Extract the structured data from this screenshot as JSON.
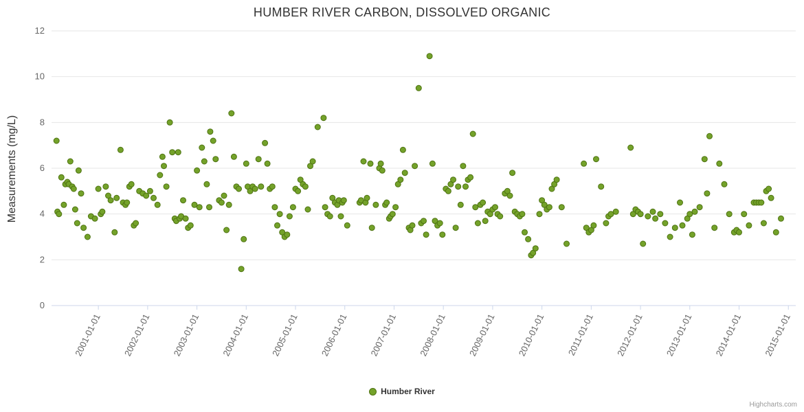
{
  "chart": {
    "title": "HUMBER RIVER CARBON, DISSOLVED ORGANIC",
    "ylabel": "Measurements (mg/L)",
    "legend": "Humber River",
    "credit": "Highcharts.com"
  },
  "colors": {
    "point_fill": "#74a22a",
    "point_stroke": "#4e7312",
    "grid": "#e6e6e6",
    "axis": "#ccd6eb",
    "tick_text": "#666666",
    "title_text": "#333333"
  },
  "chart_data": {
    "type": "scatter",
    "title": "HUMBER RIVER CARBON, DISSOLVED ORGANIC",
    "xlabel": "",
    "ylabel": "Measurements (mg/L)",
    "ylim": [
      0,
      12
    ],
    "yticks": [
      0,
      2,
      4,
      6,
      8,
      10,
      12
    ],
    "xlim": [
      2000.05,
      2015.15
    ],
    "xtick_values": [
      2001,
      2002,
      2003,
      2004,
      2005,
      2006,
      2007,
      2008,
      2009,
      2010,
      2011,
      2012,
      2013,
      2014,
      2015
    ],
    "xtick_labels": [
      "2001-01-01",
      "2002-01-01",
      "2003-01-01",
      "2004-01-01",
      "2005-01-01",
      "2006-01-01",
      "2007-01-01",
      "2008-01-01",
      "2009-01-01",
      "2010-01-01",
      "2011-01-01",
      "2012-01-01",
      "2013-01-01",
      "2014-01-01",
      "2015-01-01"
    ],
    "grid": "horizontal-only",
    "legend_position": "bottom-center",
    "series": [
      {
        "name": "Humber River",
        "points": [
          [
            2000.15,
            7.2
          ],
          [
            2000.17,
            4.1
          ],
          [
            2000.2,
            4.0
          ],
          [
            2000.25,
            5.6
          ],
          [
            2000.3,
            4.4
          ],
          [
            2000.33,
            5.3
          ],
          [
            2000.37,
            5.4
          ],
          [
            2000.4,
            5.3
          ],
          [
            2000.43,
            6.3
          ],
          [
            2000.47,
            5.2
          ],
          [
            2000.5,
            5.1
          ],
          [
            2000.53,
            4.2
          ],
          [
            2000.57,
            3.6
          ],
          [
            2000.6,
            5.9
          ],
          [
            2000.65,
            4.9
          ],
          [
            2000.7,
            3.4
          ],
          [
            2000.78,
            3.0
          ],
          [
            2000.85,
            3.9
          ],
          [
            2000.93,
            3.8
          ],
          [
            2001.0,
            5.1
          ],
          [
            2001.05,
            4.0
          ],
          [
            2001.08,
            4.1
          ],
          [
            2001.15,
            5.2
          ],
          [
            2001.2,
            4.8
          ],
          [
            2001.25,
            4.6
          ],
          [
            2001.33,
            3.2
          ],
          [
            2001.37,
            4.7
          ],
          [
            2001.45,
            6.8
          ],
          [
            2001.5,
            4.5
          ],
          [
            2001.55,
            4.4
          ],
          [
            2001.58,
            4.5
          ],
          [
            2001.63,
            5.2
          ],
          [
            2001.67,
            5.3
          ],
          [
            2001.72,
            3.5
          ],
          [
            2001.76,
            3.6
          ],
          [
            2001.83,
            5.0
          ],
          [
            2001.9,
            4.9
          ],
          [
            2001.97,
            4.8
          ],
          [
            2002.05,
            5.0
          ],
          [
            2002.12,
            4.7
          ],
          [
            2002.2,
            4.4
          ],
          [
            2002.25,
            5.7
          ],
          [
            2002.3,
            6.5
          ],
          [
            2002.33,
            6.1
          ],
          [
            2002.38,
            5.2
          ],
          [
            2002.45,
            8.0
          ],
          [
            2002.5,
            6.7
          ],
          [
            2002.55,
            3.8
          ],
          [
            2002.58,
            3.7
          ],
          [
            2002.62,
            6.7
          ],
          [
            2002.65,
            3.8
          ],
          [
            2002.68,
            3.9
          ],
          [
            2002.72,
            4.6
          ],
          [
            2002.77,
            3.8
          ],
          [
            2002.82,
            3.4
          ],
          [
            2002.87,
            3.5
          ],
          [
            2002.95,
            4.4
          ],
          [
            2003.0,
            5.9
          ],
          [
            2003.05,
            4.3
          ],
          [
            2003.1,
            6.9
          ],
          [
            2003.15,
            6.3
          ],
          [
            2003.2,
            5.3
          ],
          [
            2003.25,
            4.3
          ],
          [
            2003.27,
            7.6
          ],
          [
            2003.33,
            7.2
          ],
          [
            2003.38,
            6.4
          ],
          [
            2003.45,
            4.6
          ],
          [
            2003.5,
            4.5
          ],
          [
            2003.55,
            4.8
          ],
          [
            2003.6,
            3.3
          ],
          [
            2003.65,
            4.4
          ],
          [
            2003.7,
            8.4
          ],
          [
            2003.75,
            6.5
          ],
          [
            2003.8,
            5.2
          ],
          [
            2003.85,
            5.1
          ],
          [
            2003.9,
            1.6
          ],
          [
            2003.95,
            2.9
          ],
          [
            2004.0,
            6.2
          ],
          [
            2004.03,
            5.2
          ],
          [
            2004.08,
            5.0
          ],
          [
            2004.13,
            5.2
          ],
          [
            2004.18,
            5.1
          ],
          [
            2004.25,
            6.4
          ],
          [
            2004.3,
            5.2
          ],
          [
            2004.38,
            7.1
          ],
          [
            2004.43,
            6.2
          ],
          [
            2004.48,
            5.1
          ],
          [
            2004.53,
            5.2
          ],
          [
            2004.58,
            4.3
          ],
          [
            2004.63,
            3.5
          ],
          [
            2004.68,
            4.0
          ],
          [
            2004.73,
            3.2
          ],
          [
            2004.78,
            3.0
          ],
          [
            2004.83,
            3.1
          ],
          [
            2004.88,
            3.9
          ],
          [
            2004.95,
            4.3
          ],
          [
            2005.0,
            5.1
          ],
          [
            2005.05,
            5.0
          ],
          [
            2005.1,
            5.5
          ],
          [
            2005.15,
            5.3
          ],
          [
            2005.2,
            5.2
          ],
          [
            2005.25,
            4.2
          ],
          [
            2005.3,
            6.1
          ],
          [
            2005.35,
            6.3
          ],
          [
            2005.45,
            7.8
          ],
          [
            2005.57,
            8.2
          ],
          [
            2005.6,
            4.3
          ],
          [
            2005.65,
            4.0
          ],
          [
            2005.7,
            3.9
          ],
          [
            2005.75,
            4.7
          ],
          [
            2005.8,
            4.5
          ],
          [
            2005.85,
            4.4
          ],
          [
            2005.88,
            4.6
          ],
          [
            2005.92,
            3.9
          ],
          [
            2005.95,
            4.5
          ],
          [
            2005.98,
            4.6
          ],
          [
            2006.05,
            3.5
          ],
          [
            2006.3,
            4.5
          ],
          [
            2006.33,
            4.6
          ],
          [
            2006.38,
            6.3
          ],
          [
            2006.42,
            4.5
          ],
          [
            2006.45,
            4.7
          ],
          [
            2006.52,
            6.2
          ],
          [
            2006.55,
            3.4
          ],
          [
            2006.63,
            4.4
          ],
          [
            2006.7,
            6.0
          ],
          [
            2006.73,
            6.2
          ],
          [
            2006.76,
            5.9
          ],
          [
            2006.82,
            4.4
          ],
          [
            2006.85,
            4.5
          ],
          [
            2006.9,
            3.8
          ],
          [
            2006.93,
            3.9
          ],
          [
            2006.97,
            4.0
          ],
          [
            2007.03,
            4.3
          ],
          [
            2007.08,
            5.3
          ],
          [
            2007.13,
            5.5
          ],
          [
            2007.18,
            6.8
          ],
          [
            2007.22,
            5.8
          ],
          [
            2007.3,
            3.4
          ],
          [
            2007.33,
            3.3
          ],
          [
            2007.37,
            3.5
          ],
          [
            2007.42,
            6.1
          ],
          [
            2007.5,
            9.5
          ],
          [
            2007.55,
            3.6
          ],
          [
            2007.6,
            3.7
          ],
          [
            2007.65,
            3.1
          ],
          [
            2007.72,
            10.9
          ],
          [
            2007.78,
            6.2
          ],
          [
            2007.83,
            3.7
          ],
          [
            2007.88,
            3.5
          ],
          [
            2007.93,
            3.6
          ],
          [
            2007.98,
            3.1
          ],
          [
            2008.05,
            5.1
          ],
          [
            2008.1,
            5.0
          ],
          [
            2008.15,
            5.3
          ],
          [
            2008.2,
            5.5
          ],
          [
            2008.25,
            3.4
          ],
          [
            2008.3,
            5.2
          ],
          [
            2008.35,
            4.4
          ],
          [
            2008.4,
            6.1
          ],
          [
            2008.45,
            5.2
          ],
          [
            2008.5,
            5.5
          ],
          [
            2008.55,
            5.6
          ],
          [
            2008.6,
            7.5
          ],
          [
            2008.65,
            4.3
          ],
          [
            2008.7,
            3.6
          ],
          [
            2008.75,
            4.4
          ],
          [
            2008.8,
            4.5
          ],
          [
            2008.85,
            3.7
          ],
          [
            2008.9,
            4.1
          ],
          [
            2008.95,
            4.0
          ],
          [
            2009.0,
            4.2
          ],
          [
            2009.05,
            4.3
          ],
          [
            2009.1,
            4.0
          ],
          [
            2009.15,
            3.9
          ],
          [
            2009.25,
            4.9
          ],
          [
            2009.3,
            5.0
          ],
          [
            2009.35,
            4.8
          ],
          [
            2009.4,
            5.8
          ],
          [
            2009.45,
            4.1
          ],
          [
            2009.5,
            4.0
          ],
          [
            2009.55,
            3.9
          ],
          [
            2009.6,
            4.0
          ],
          [
            2009.65,
            3.2
          ],
          [
            2009.72,
            2.9
          ],
          [
            2009.78,
            2.2
          ],
          [
            2009.82,
            2.3
          ],
          [
            2009.87,
            2.5
          ],
          [
            2009.95,
            4.0
          ],
          [
            2010.0,
            4.6
          ],
          [
            2010.05,
            4.4
          ],
          [
            2010.1,
            4.2
          ],
          [
            2010.15,
            4.3
          ],
          [
            2010.2,
            5.1
          ],
          [
            2010.25,
            5.3
          ],
          [
            2010.3,
            5.5
          ],
          [
            2010.4,
            4.3
          ],
          [
            2010.5,
            2.7
          ],
          [
            2010.85,
            6.2
          ],
          [
            2010.9,
            3.4
          ],
          [
            2010.95,
            3.2
          ],
          [
            2011.0,
            3.3
          ],
          [
            2011.05,
            3.5
          ],
          [
            2011.1,
            6.4
          ],
          [
            2011.2,
            5.2
          ],
          [
            2011.3,
            3.6
          ],
          [
            2011.35,
            3.9
          ],
          [
            2011.4,
            4.0
          ],
          [
            2011.5,
            4.1
          ],
          [
            2011.8,
            6.9
          ],
          [
            2011.85,
            4.0
          ],
          [
            2011.9,
            4.2
          ],
          [
            2011.95,
            4.1
          ],
          [
            2012.0,
            4.0
          ],
          [
            2012.05,
            2.7
          ],
          [
            2012.15,
            3.9
          ],
          [
            2012.25,
            4.1
          ],
          [
            2012.3,
            3.8
          ],
          [
            2012.4,
            4.0
          ],
          [
            2012.5,
            3.6
          ],
          [
            2012.6,
            3.0
          ],
          [
            2012.7,
            3.4
          ],
          [
            2012.8,
            4.5
          ],
          [
            2012.85,
            3.5
          ],
          [
            2012.95,
            3.8
          ],
          [
            2013.0,
            4.0
          ],
          [
            2013.05,
            3.1
          ],
          [
            2013.1,
            4.1
          ],
          [
            2013.2,
            4.3
          ],
          [
            2013.3,
            6.4
          ],
          [
            2013.35,
            4.9
          ],
          [
            2013.4,
            7.4
          ],
          [
            2013.5,
            3.4
          ],
          [
            2013.6,
            6.2
          ],
          [
            2013.7,
            5.3
          ],
          [
            2013.8,
            4.0
          ],
          [
            2013.9,
            3.2
          ],
          [
            2013.95,
            3.3
          ],
          [
            2014.0,
            3.2
          ],
          [
            2014.1,
            4.0
          ],
          [
            2014.2,
            3.5
          ],
          [
            2014.3,
            4.5
          ],
          [
            2014.35,
            4.5
          ],
          [
            2014.4,
            4.5
          ],
          [
            2014.45,
            4.5
          ],
          [
            2014.5,
            3.6
          ],
          [
            2014.55,
            5.0
          ],
          [
            2014.6,
            5.1
          ],
          [
            2014.65,
            4.7
          ],
          [
            2014.75,
            3.2
          ],
          [
            2014.85,
            3.8
          ]
        ]
      }
    ]
  }
}
